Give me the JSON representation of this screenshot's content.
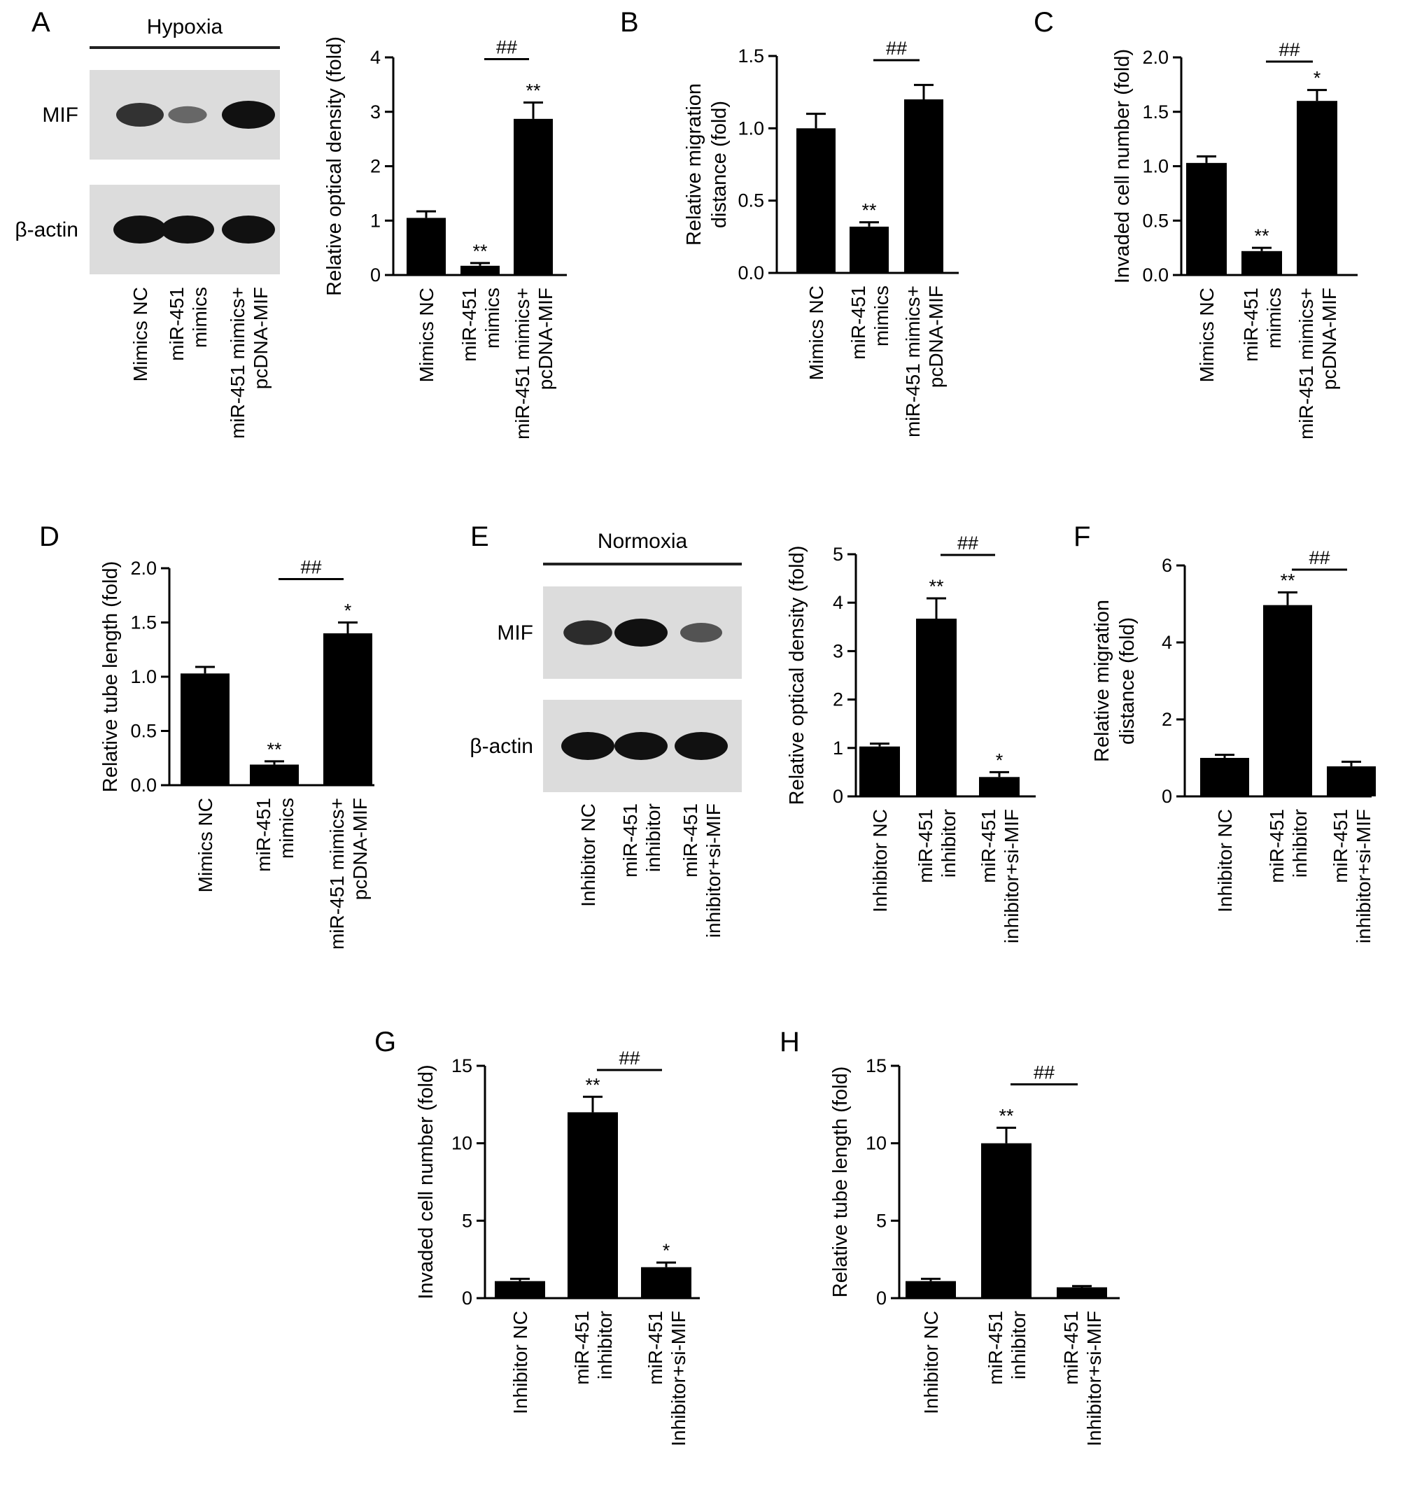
{
  "colors": {
    "bar": "#000000",
    "axis": "#000000",
    "blot_bg": "#dcdcdc",
    "band": "#111111"
  },
  "blots": [
    {
      "id": "blot-hypoxia",
      "panel": "A",
      "title": "Hypoxia",
      "rows": [
        "MIF",
        "β-actin"
      ],
      "lanes": [
        [
          "Mimics NC"
        ],
        [
          "miR-451",
          "mimics"
        ],
        [
          "miR-451 mimics+",
          "pcDNA-MIF"
        ]
      ],
      "band_intensity": [
        [
          0.75,
          0.35,
          1.0
        ],
        [
          1.0,
          1.0,
          1.0
        ]
      ]
    },
    {
      "id": "blot-normoxia",
      "panel": "E",
      "title": "Normoxia",
      "rows": [
        "MIF",
        "β-actin"
      ],
      "lanes": [
        [
          "Inhibitor NC"
        ],
        [
          "miR-451",
          "inhibitor"
        ],
        [
          "miR-451",
          "inhibitor+si-MIF"
        ]
      ],
      "band_intensity": [
        [
          0.8,
          1.0,
          0.5
        ],
        [
          1.0,
          1.0,
          1.0
        ]
      ]
    }
  ],
  "chart_data": [
    {
      "id": "chart-a",
      "panel": "",
      "type": "bar",
      "ylabel": "Relative optical density (fold)",
      "ylim": [
        0,
        4
      ],
      "yticks": [
        "0",
        "1",
        "2",
        "3",
        "4"
      ],
      "categories": [
        [
          "Mimics NC"
        ],
        [
          "miR-451",
          "mimics"
        ],
        [
          "miR-451 mimics+",
          "pcDNA-MIF"
        ]
      ],
      "values": [
        1.05,
        0.17,
        2.87
      ],
      "errors": [
        0.12,
        0.05,
        0.3
      ],
      "stars": [
        "",
        "**",
        "**"
      ],
      "bracket": {
        "from": 1,
        "to": 2,
        "label": "##"
      }
    },
    {
      "id": "chart-b",
      "panel": "B",
      "type": "bar",
      "ylabel": [
        "Relative migration",
        "distance (fold)"
      ],
      "ylim": [
        0,
        1.5
      ],
      "yticks": [
        "0.0",
        "0.5",
        "1.0",
        "1.5"
      ],
      "categories": [
        [
          "Mimics NC"
        ],
        [
          "miR-451",
          "mimics"
        ],
        [
          "miR-451 mimics+",
          "pcDNA-MIF"
        ]
      ],
      "values": [
        1.0,
        0.32,
        1.2
      ],
      "errors": [
        0.1,
        0.03,
        0.1
      ],
      "stars": [
        "",
        "**",
        ""
      ],
      "bracket": {
        "from": 1,
        "to": 2,
        "label": "##"
      }
    },
    {
      "id": "chart-c",
      "panel": "C",
      "type": "bar",
      "ylabel": "Invaded cell number (fold)",
      "ylim": [
        0,
        2.0
      ],
      "yticks": [
        "0.0",
        "0.5",
        "1.0",
        "1.5",
        "2.0"
      ],
      "categories": [
        [
          "Mimics NC"
        ],
        [
          "miR-451",
          "mimics"
        ],
        [
          "miR-451 mimics+",
          "pcDNA-MIF"
        ]
      ],
      "values": [
        1.03,
        0.22,
        1.6
      ],
      "errors": [
        0.06,
        0.03,
        0.1
      ],
      "stars": [
        "",
        "**",
        "*"
      ],
      "bracket": {
        "from": 1,
        "to": 2,
        "label": "##"
      }
    },
    {
      "id": "chart-d",
      "panel": "D",
      "type": "bar",
      "ylabel": "Relative tube length (fold)",
      "ylim": [
        0,
        2.0
      ],
      "yticks": [
        "0.0",
        "0.5",
        "1.0",
        "1.5",
        "2.0"
      ],
      "categories": [
        [
          "Mimics NC"
        ],
        [
          "miR-451",
          "mimics"
        ],
        [
          "miR-451 mimics+",
          "pcDNA-MIF"
        ]
      ],
      "values": [
        1.03,
        0.19,
        1.4
      ],
      "errors": [
        0.06,
        0.03,
        0.1
      ],
      "stars": [
        "",
        "**",
        "*"
      ],
      "bracket": {
        "from": 1,
        "to": 2,
        "label": "##"
      }
    },
    {
      "id": "chart-e",
      "panel": "",
      "type": "bar",
      "ylabel": "Relative optical density (fold)",
      "ylim": [
        0,
        5
      ],
      "yticks": [
        "0",
        "1",
        "2",
        "3",
        "4",
        "5"
      ],
      "categories": [
        [
          "Inhibitor NC"
        ],
        [
          "miR-451",
          "inhibitor"
        ],
        [
          "miR-451",
          "inhibitor+si-MIF"
        ]
      ],
      "values": [
        1.03,
        3.67,
        0.4
      ],
      "errors": [
        0.06,
        0.42,
        0.1
      ],
      "stars": [
        "",
        "**",
        "*"
      ],
      "bracket": {
        "from": 1,
        "to": 2,
        "label": "##"
      }
    },
    {
      "id": "chart-f",
      "panel": "F",
      "type": "bar",
      "ylabel": [
        "Relative migration",
        "distance (fold)"
      ],
      "ylim": [
        0,
        6
      ],
      "yticks": [
        "0",
        "2",
        "4",
        "6"
      ],
      "categories": [
        [
          "Inhibitor NC"
        ],
        [
          "miR-451",
          "inhibitor"
        ],
        [
          "miR-451",
          "inhibitor+si-MIF"
        ]
      ],
      "values": [
        1.0,
        4.97,
        0.78
      ],
      "errors": [
        0.08,
        0.33,
        0.12
      ],
      "stars": [
        "",
        "**",
        ""
      ],
      "bracket": {
        "from": 1,
        "to": 2,
        "label": "##"
      }
    },
    {
      "id": "chart-g",
      "panel": "G",
      "type": "bar",
      "ylabel": "Invaded cell number (fold)",
      "ylim": [
        0,
        15
      ],
      "yticks": [
        "0",
        "5",
        "10",
        "15"
      ],
      "categories": [
        [
          "Inhibitor NC"
        ],
        [
          "miR-451",
          "inhibitor"
        ],
        [
          "miR-451",
          "Inhibitor+si-MIF"
        ]
      ],
      "values": [
        1.1,
        12.0,
        2.0
      ],
      "errors": [
        0.15,
        1.0,
        0.3
      ],
      "stars": [
        "",
        "**",
        "*"
      ],
      "bracket": {
        "from": 1,
        "to": 2,
        "label": "##"
      }
    },
    {
      "id": "chart-h",
      "panel": "H",
      "type": "bar",
      "ylabel": "Relative tube length (fold)",
      "ylim": [
        0,
        15
      ],
      "yticks": [
        "0",
        "5",
        "10",
        "15"
      ],
      "categories": [
        [
          "Inhibitor NC"
        ],
        [
          "miR-451",
          "inhibitor"
        ],
        [
          "miR-451",
          "Inhibitor+si-MIF"
        ]
      ],
      "values": [
        1.1,
        10.0,
        0.7
      ],
      "errors": [
        0.15,
        1.0,
        0.08
      ],
      "stars": [
        "",
        "**",
        ""
      ],
      "bracket": {
        "from": 1,
        "to": 2,
        "label": "##"
      }
    }
  ]
}
